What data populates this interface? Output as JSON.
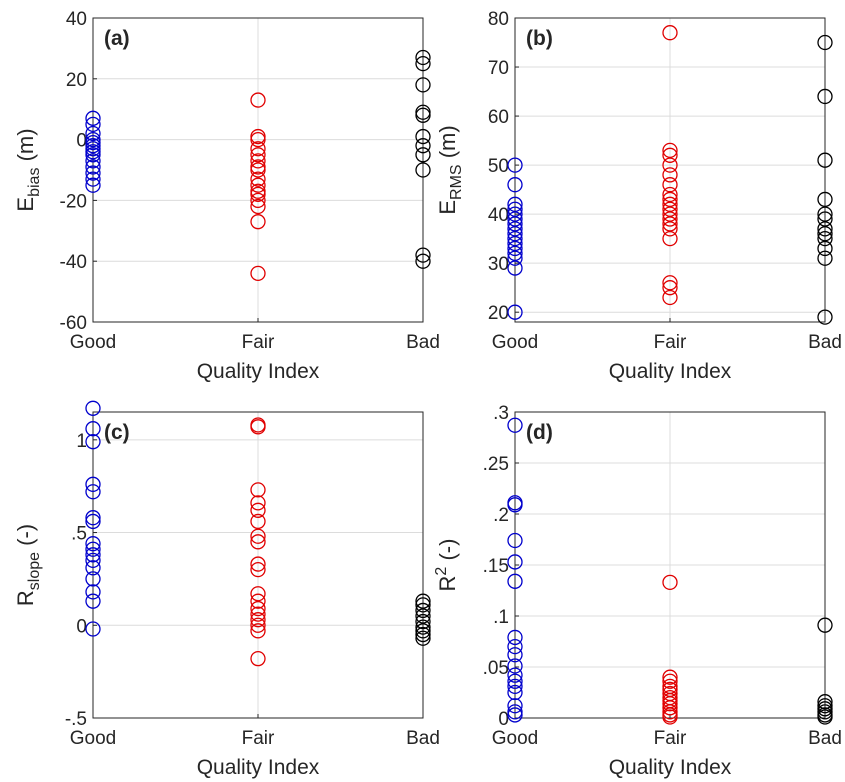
{
  "figure": {
    "colors": {
      "good": "#0000cc",
      "fair": "#e00000",
      "bad": "#000000",
      "grid": "#dcdcdc",
      "axis": "#262626"
    }
  },
  "chart_data": [
    {
      "type": "scatter",
      "panel_label": "(a)",
      "ylabel": {
        "main": "E",
        "sub": "bias",
        "rest": " (m)"
      },
      "xlabel": "Quality Index",
      "categories": [
        "Good",
        "Fair",
        "Bad"
      ],
      "ylim": [
        -60,
        40
      ],
      "yticks": [
        -60,
        -40,
        -20,
        0,
        20,
        40
      ],
      "grid": true,
      "series": [
        {
          "category": "Good",
          "color": "#0000cc",
          "values": [
            7,
            5,
            2,
            0,
            -1,
            -2,
            -3,
            -4,
            -5,
            -7,
            -9,
            -11,
            -13,
            -15
          ]
        },
        {
          "category": "Fair",
          "color": "#e00000",
          "values": [
            13,
            1,
            0,
            -3,
            -5,
            -7,
            -9,
            -10,
            -13,
            -15,
            -17,
            -18,
            -20,
            -22,
            -27,
            -44
          ]
        },
        {
          "category": "Bad",
          "color": "#000000",
          "values": [
            27,
            25,
            18,
            9,
            8,
            1,
            -2,
            -5,
            -10,
            -38,
            -40
          ]
        }
      ]
    },
    {
      "type": "scatter",
      "panel_label": "(b)",
      "ylabel": {
        "main": "E",
        "sub": "RMS",
        "rest": " (m)"
      },
      "xlabel": "Quality Index",
      "categories": [
        "Good",
        "Fair",
        "Bad"
      ],
      "ylim": [
        18,
        80
      ],
      "yticks": [
        20,
        30,
        40,
        50,
        60,
        70,
        80
      ],
      "grid": true,
      "series": [
        {
          "category": "Good",
          "color": "#0000cc",
          "values": [
            50,
            46,
            42,
            41,
            40,
            39,
            38,
            37,
            36,
            35,
            34,
            33,
            32,
            31,
            29,
            20
          ]
        },
        {
          "category": "Fair",
          "color": "#e00000",
          "values": [
            77,
            53,
            52,
            50,
            48,
            46,
            44,
            43,
            42,
            41,
            40,
            39,
            38,
            37,
            35,
            26,
            25,
            23
          ]
        },
        {
          "category": "Bad",
          "color": "#000000",
          "values": [
            75,
            64,
            51,
            43,
            40,
            39,
            37,
            36,
            35,
            33,
            31,
            19
          ]
        }
      ]
    },
    {
      "type": "scatter",
      "panel_label": "(c)",
      "ylabel": {
        "main": "R",
        "sub": "slope",
        "rest": " (-)"
      },
      "xlabel": "Quality Index",
      "categories": [
        "Good",
        "Fair",
        "Bad"
      ],
      "ylim": [
        -0.5,
        1.15
      ],
      "yticks": [
        -0.5,
        0,
        0.5,
        1
      ],
      "grid": true,
      "series": [
        {
          "category": "Good",
          "color": "#0000cc",
          "values": [
            1.17,
            1.06,
            0.99,
            0.76,
            0.72,
            0.58,
            0.56,
            0.44,
            0.41,
            0.38,
            0.35,
            0.31,
            0.25,
            0.18,
            0.13,
            -0.02
          ]
        },
        {
          "category": "Fair",
          "color": "#e00000",
          "values": [
            1.08,
            1.07,
            0.73,
            0.66,
            0.62,
            0.56,
            0.48,
            0.45,
            0.33,
            0.3,
            0.17,
            0.13,
            0.09,
            0.06,
            0.03,
            0.0,
            -0.03,
            -0.18
          ]
        },
        {
          "category": "Bad",
          "color": "#000000",
          "values": [
            0.13,
            0.11,
            0.08,
            0.05,
            0.02,
            -0.01,
            -0.03,
            -0.05,
            -0.07
          ]
        }
      ]
    },
    {
      "type": "scatter",
      "panel_label": "(d)",
      "ylabel": {
        "main": "R",
        "sup": "2",
        "rest": " (-)"
      },
      "xlabel": "Quality Index",
      "categories": [
        "Good",
        "Fair",
        "Bad"
      ],
      "ylim": [
        0,
        0.3
      ],
      "yticks": [
        0,
        0.05,
        0.1,
        0.15,
        0.2,
        0.25,
        0.3
      ],
      "grid": true,
      "series": [
        {
          "category": "Good",
          "color": "#0000cc",
          "values": [
            0.287,
            0.211,
            0.209,
            0.174,
            0.153,
            0.134,
            0.079,
            0.07,
            0.062,
            0.051,
            0.042,
            0.036,
            0.031,
            0.025,
            0.012,
            0.006,
            0.003
          ]
        },
        {
          "category": "Fair",
          "color": "#e00000",
          "values": [
            0.133,
            0.04,
            0.036,
            0.031,
            0.028,
            0.024,
            0.02,
            0.017,
            0.014,
            0.01,
            0.006,
            0.003,
            0.001
          ]
        },
        {
          "category": "Bad",
          "color": "#000000",
          "values": [
            0.091,
            0.016,
            0.012,
            0.009,
            0.006,
            0.003,
            0.001
          ]
        }
      ]
    }
  ]
}
